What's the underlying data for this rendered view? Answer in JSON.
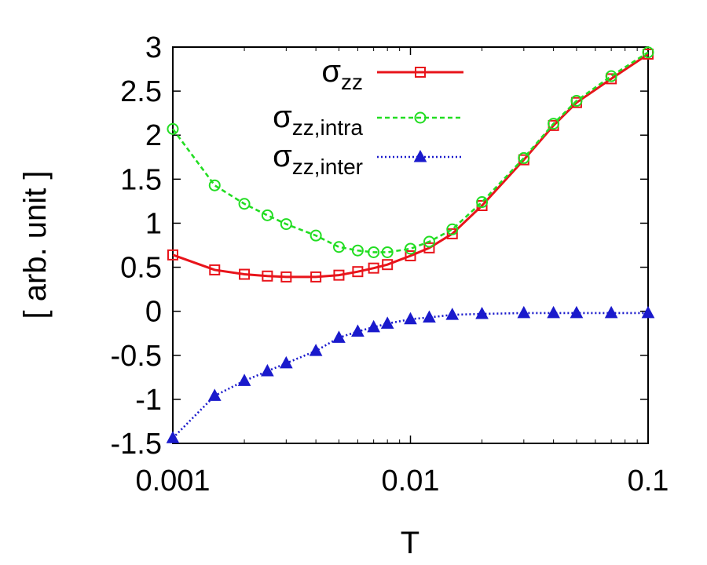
{
  "chart_data": {
    "type": "line",
    "xlabel": "T",
    "ylabel": "[ arb. unit ]",
    "xscale": "log",
    "xlim": [
      0.001,
      0.1
    ],
    "ylim": [
      -1.5,
      3
    ],
    "xticks": [
      {
        "value": 0.001,
        "label": "0.001"
      },
      {
        "value": 0.01,
        "label": "0.01"
      },
      {
        "value": 0.1,
        "label": "0.1"
      }
    ],
    "yticks": [
      {
        "value": 3,
        "label": "3"
      },
      {
        "value": 2.5,
        "label": "2.5"
      },
      {
        "value": 2,
        "label": "2"
      },
      {
        "value": 1.5,
        "label": "1.5"
      },
      {
        "value": 1,
        "label": "1"
      },
      {
        "value": 0.5,
        "label": "0.5"
      },
      {
        "value": 0,
        "label": "0"
      },
      {
        "value": -0.5,
        "label": "-0.5"
      },
      {
        "value": -1,
        "label": "-1"
      },
      {
        "value": -1.5,
        "label": "-1.5"
      }
    ],
    "grid": false,
    "legend_position": "top-right",
    "series": [
      {
        "name": "σ",
        "name_sub": "zz",
        "color": "#e8141b",
        "line_style": "solid",
        "marker": "square",
        "x": [
          0.001,
          0.0015,
          0.002,
          0.0025,
          0.003,
          0.004,
          0.005,
          0.006,
          0.007,
          0.008,
          0.01,
          0.012,
          0.015,
          0.02,
          0.03,
          0.04,
          0.05,
          0.07,
          0.1
        ],
        "y": [
          0.64,
          0.47,
          0.42,
          0.4,
          0.39,
          0.39,
          0.41,
          0.45,
          0.49,
          0.53,
          0.63,
          0.72,
          0.88,
          1.2,
          1.72,
          2.11,
          2.37,
          2.64,
          2.92
        ]
      },
      {
        "name": "σ",
        "name_sub": "zz,intra",
        "color": "#22dd22",
        "line_style": "dashed",
        "marker": "circle",
        "x": [
          0.001,
          0.0015,
          0.002,
          0.0025,
          0.003,
          0.004,
          0.005,
          0.006,
          0.007,
          0.008,
          0.01,
          0.012,
          0.015,
          0.02,
          0.03,
          0.04,
          0.05,
          0.07,
          0.1
        ],
        "y": [
          2.07,
          1.43,
          1.22,
          1.09,
          0.99,
          0.86,
          0.73,
          0.69,
          0.67,
          0.67,
          0.71,
          0.79,
          0.93,
          1.24,
          1.74,
          2.13,
          2.39,
          2.67,
          2.94
        ]
      },
      {
        "name": "σ",
        "name_sub": "zz,inter",
        "color": "#1a1acc",
        "line_style": "dotted",
        "marker": "triangle",
        "x": [
          0.001,
          0.0015,
          0.002,
          0.0025,
          0.003,
          0.004,
          0.005,
          0.006,
          0.007,
          0.008,
          0.01,
          0.012,
          0.015,
          0.02,
          0.03,
          0.04,
          0.05,
          0.07,
          0.1
        ],
        "y": [
          -1.44,
          -0.96,
          -0.79,
          -0.68,
          -0.59,
          -0.45,
          -0.3,
          -0.23,
          -0.18,
          -0.14,
          -0.09,
          -0.07,
          -0.04,
          -0.03,
          -0.02,
          -0.02,
          -0.02,
          -0.02,
          -0.02
        ]
      }
    ]
  }
}
